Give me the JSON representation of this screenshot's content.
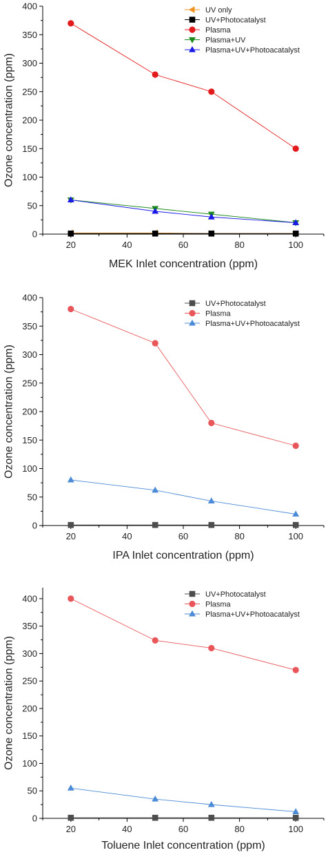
{
  "chart_data": [
    {
      "type": "line",
      "title": "",
      "xlabel": "MEK Inlet concentration (ppm)",
      "ylabel": "Ozone concentration (ppm)",
      "xlim": [
        10,
        110
      ],
      "ylim": [
        0,
        400
      ],
      "xticks": [
        20,
        40,
        60,
        80,
        100
      ],
      "yticks": [
        0,
        50,
        100,
        150,
        200,
        250,
        300,
        350,
        400
      ],
      "x": [
        20,
        50,
        70,
        100
      ],
      "legend_position": "top-right",
      "grid": false,
      "series": [
        {
          "name": "UV only",
          "values": [
            2,
            2,
            1,
            1
          ],
          "color": "#f0921e",
          "marker": "triangle-left"
        },
        {
          "name": "UV+Photocatalyst",
          "values": [
            1,
            1,
            1,
            1
          ],
          "color": "#000000",
          "marker": "square"
        },
        {
          "name": "Plasma",
          "values": [
            370,
            280,
            250,
            150
          ],
          "color": "#e31a1c",
          "marker": "circle"
        },
        {
          "name": "Plasma+UV",
          "values": [
            60,
            45,
            35,
            20
          ],
          "color": "#1a8a1a",
          "marker": "triangle-down"
        },
        {
          "name": "Plasma+UV+Photoacatalyst",
          "values": [
            60,
            40,
            30,
            20
          ],
          "color": "#1a1ae6",
          "marker": "triangle-up"
        }
      ]
    },
    {
      "type": "line",
      "title": "",
      "xlabel": "IPA Inlet concentration (ppm)",
      "ylabel": "Ozone concentration (ppm)",
      "xlim": [
        10,
        110
      ],
      "ylim": [
        0,
        400
      ],
      "xticks": [
        20,
        40,
        60,
        80,
        100
      ],
      "yticks": [
        0,
        50,
        100,
        150,
        200,
        250,
        300,
        350,
        400
      ],
      "x": [
        20,
        50,
        70,
        100
      ],
      "legend_position": "top-right",
      "grid": false,
      "series": [
        {
          "name": "UV+Photocatalyst",
          "values": [
            1,
            1,
            1,
            1
          ],
          "color": "#4d4d4d",
          "marker": "square"
        },
        {
          "name": "Plasma",
          "values": [
            380,
            320,
            180,
            140
          ],
          "color": "#e8565a",
          "marker": "circle"
        },
        {
          "name": "Plasma+UV+Photoacatalyst",
          "values": [
            80,
            62,
            43,
            20
          ],
          "color": "#4a8ad6",
          "marker": "triangle-up"
        }
      ]
    },
    {
      "type": "line",
      "title": "",
      "xlabel": "Toluene Inlet concentration (ppm)",
      "ylabel": "Ozone concentration (ppm)",
      "xlim": [
        10,
        110
      ],
      "ylim": [
        0,
        420
      ],
      "xticks": [
        20,
        40,
        60,
        80,
        100
      ],
      "yticks": [
        0,
        50,
        100,
        150,
        200,
        250,
        300,
        350,
        400
      ],
      "x": [
        20,
        50,
        70,
        100
      ],
      "legend_position": "top-right",
      "grid": false,
      "series": [
        {
          "name": "UV+Photocatalyst",
          "values": [
            1,
            1,
            1,
            1
          ],
          "color": "#4d4d4d",
          "marker": "square"
        },
        {
          "name": "Plasma",
          "values": [
            400,
            324,
            310,
            270
          ],
          "color": "#e8565a",
          "marker": "circle"
        },
        {
          "name": "Plasma+UV+Photoacatalyst",
          "values": [
            55,
            35,
            25,
            12
          ],
          "color": "#4a8ad6",
          "marker": "triangle-up"
        }
      ]
    }
  ]
}
